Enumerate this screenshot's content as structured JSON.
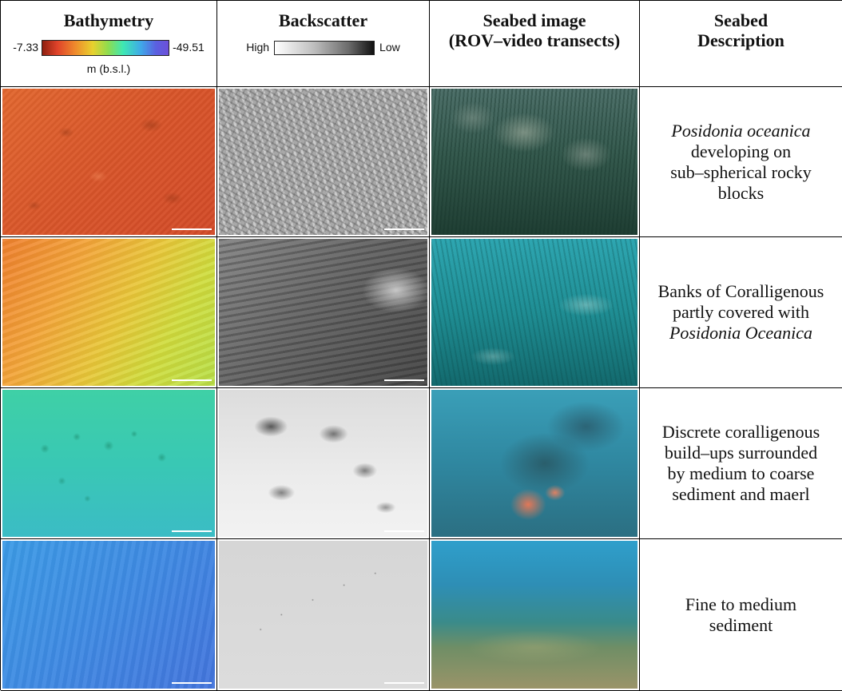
{
  "headers": {
    "bathymetry": "Bathymetry",
    "backscatter": "Backscatter",
    "seabed_image_line1": "Seabed image",
    "seabed_image_line2": "(ROV–video transects)",
    "seabed_desc_line1": "Seabed",
    "seabed_desc_line2": "Description"
  },
  "bathy_legend": {
    "min": "-7.33",
    "max": "-49.51",
    "unit": "m (b.s.l.)"
  },
  "backscatter_legend": {
    "high": "High",
    "low": "Low"
  },
  "rows": [
    {
      "desc_italic_start": "Posidonia oceanica",
      "desc_line2": "developing on",
      "desc_line3": "sub–spherical rocky",
      "desc_line4": "blocks"
    },
    {
      "desc_line1": "Banks of Coralligenous",
      "desc_line2": "partly covered with",
      "desc_italic_end": "Posidonia Oceanica"
    },
    {
      "desc_line1": "Discrete coralligenous",
      "desc_line2": "build–ups surrounded",
      "desc_line3": "by medium to coarse",
      "desc_line4": "sediment and maerl"
    },
    {
      "desc_line1": "Fine to medium",
      "desc_line2": "sediment"
    }
  ],
  "colors": {
    "bathy_shallow": "#d24a28",
    "bathy_deep": "#4374dc",
    "backscatter_high": "#ffffff",
    "backscatter_low": "#111111"
  }
}
